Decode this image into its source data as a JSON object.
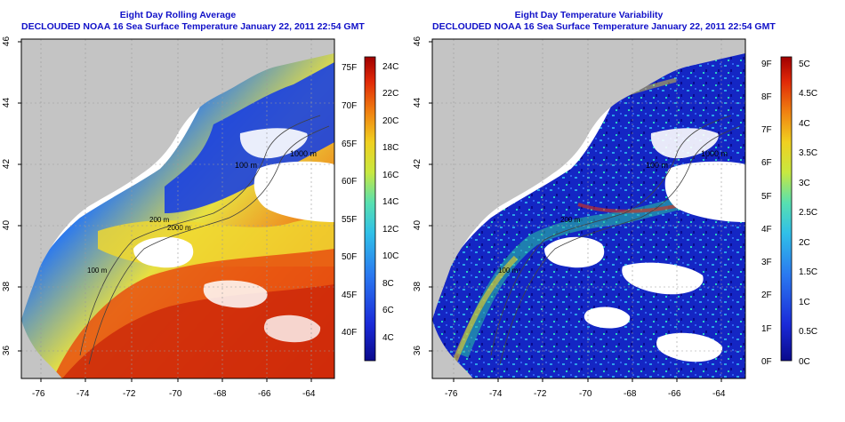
{
  "colors": {
    "title": "#1010c8",
    "land": "#c4c4c4",
    "no_data": "#ffffff",
    "contour": "#404040"
  },
  "left_panel": {
    "title_line1": "Eight Day Rolling Average",
    "title_line2": "DECLOUDED NOAA 16 Sea Surface Temperature January 22, 2011 22:54 GMT",
    "x_ticks": [
      "-76",
      "-74",
      "-72",
      "-70",
      "-68",
      "-66",
      "-64"
    ],
    "y_ticks": [
      "36",
      "38",
      "40",
      "42",
      "44",
      "46"
    ],
    "contour_labels": [
      "100 m",
      "1000 m",
      "100 m",
      "200 m",
      "2000 m"
    ],
    "colorbar": {
      "fahrenheit_ticks": [
        "75F",
        "70F",
        "65F",
        "60F",
        "55F",
        "50F",
        "45F",
        "40F"
      ],
      "celsius_ticks": [
        "24C",
        "22C",
        "20C",
        "18C",
        "16C",
        "14C",
        "12C",
        "10C",
        "8C",
        "6C",
        "4C"
      ],
      "range_c": [
        2.5,
        25
      ]
    }
  },
  "right_panel": {
    "title_line1": "Eight Day Temperature Variability",
    "title_line2": "DECLOUDED NOAA 16 Sea Surface Temperature January 22, 2011 22:54 GMT",
    "x_ticks": [
      "-76",
      "-74",
      "-72",
      "-70",
      "-68",
      "-66",
      "-64"
    ],
    "y_ticks": [
      "36",
      "38",
      "40",
      "42",
      "44",
      "46"
    ],
    "contour_labels": [
      "100 m",
      "1000 m",
      "100 m",
      "200 m"
    ],
    "colorbar": {
      "fahrenheit_ticks": [
        "9F",
        "8F",
        "7F",
        "6F",
        "5F",
        "4F",
        "3F",
        "2F",
        "1F",
        "0F"
      ],
      "celsius_ticks": [
        "5C",
        "4.5C",
        "4C",
        "3.5C",
        "3C",
        "2.5C",
        "2C",
        "1.5C",
        "1C",
        "0.5C",
        "0C"
      ],
      "range_c": [
        0,
        5.2
      ]
    }
  }
}
